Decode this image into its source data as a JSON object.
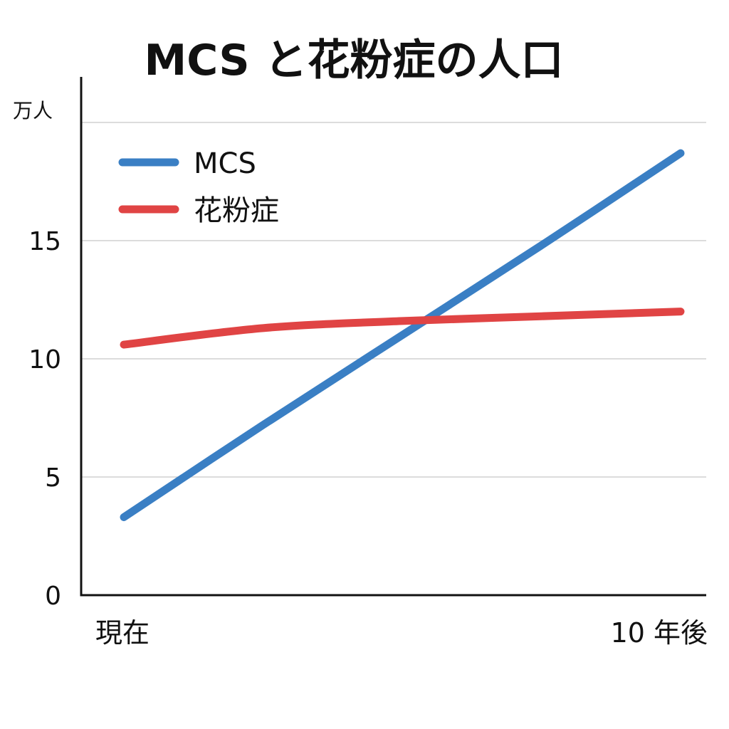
{
  "chart_data": {
    "type": "line",
    "title": "MCS と花粉症の人口",
    "ylabel": "万人",
    "xlabel": "",
    "categories": [
      "現在",
      "",
      "",
      "",
      "10 年後"
    ],
    "x_tick_labels": [
      "現在",
      "10 年後"
    ],
    "y_ticks": [
      0,
      5,
      10,
      15
    ],
    "ylim": [
      0,
      20
    ],
    "grid": true,
    "legend_position": "top-left",
    "series": [
      {
        "name": "MCS",
        "color": "#3a7fc4",
        "values": [
          3.3,
          7.2,
          11.0,
          14.8,
          18.7
        ]
      },
      {
        "name": "花粉症",
        "color": "#e04444",
        "values": [
          10.6,
          11.3,
          11.6,
          11.8,
          12.0
        ]
      }
    ]
  }
}
